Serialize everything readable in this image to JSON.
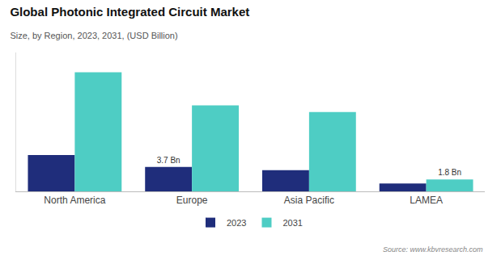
{
  "chart_data": {
    "type": "bar",
    "title": "Global Photonic Integrated Circuit Market",
    "subtitle": "Size, by Region, 2023, 2031, (USD Billion)",
    "categories": [
      "North America",
      "Europe",
      "Asia Pacific",
      "LAMEA"
    ],
    "series": [
      {
        "name": "2023",
        "color": "#1f2d7b",
        "values": [
          5.5,
          3.7,
          3.2,
          1.2
        ]
      },
      {
        "name": "2031",
        "color": "#4ecdc4",
        "values": [
          18.0,
          13.0,
          12.0,
          1.8
        ]
      }
    ],
    "annotations": [
      {
        "text": "3.7 Bn",
        "category": "Europe",
        "series": "2023"
      },
      {
        "text": "1.8 Bn",
        "category": "LAMEA",
        "series": "2031"
      }
    ],
    "source": "Source: www.kbvresearch.com",
    "ylim": [
      0,
      21
    ],
    "grid": false,
    "legend": "bottom",
    "tick_labels": "x"
  }
}
